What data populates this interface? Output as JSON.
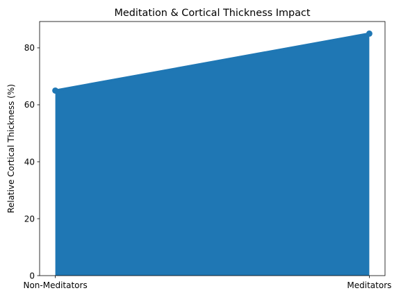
{
  "chart_data": {
    "type": "area",
    "title": "Meditation & Cortical Thickness Impact",
    "xlabel": "",
    "ylabel": "Relative Cortical Thickness (%)",
    "categories": [
      "Non-Meditators",
      "Meditators"
    ],
    "values": [
      65,
      85
    ],
    "ylim": [
      0,
      89.25
    ],
    "yticks": [
      0,
      20,
      40,
      60,
      80
    ],
    "grid": false,
    "legend": "none",
    "colors": {
      "fill": "#1f77b4",
      "line": "#1f77b4",
      "marker": "#1f77b4"
    }
  }
}
